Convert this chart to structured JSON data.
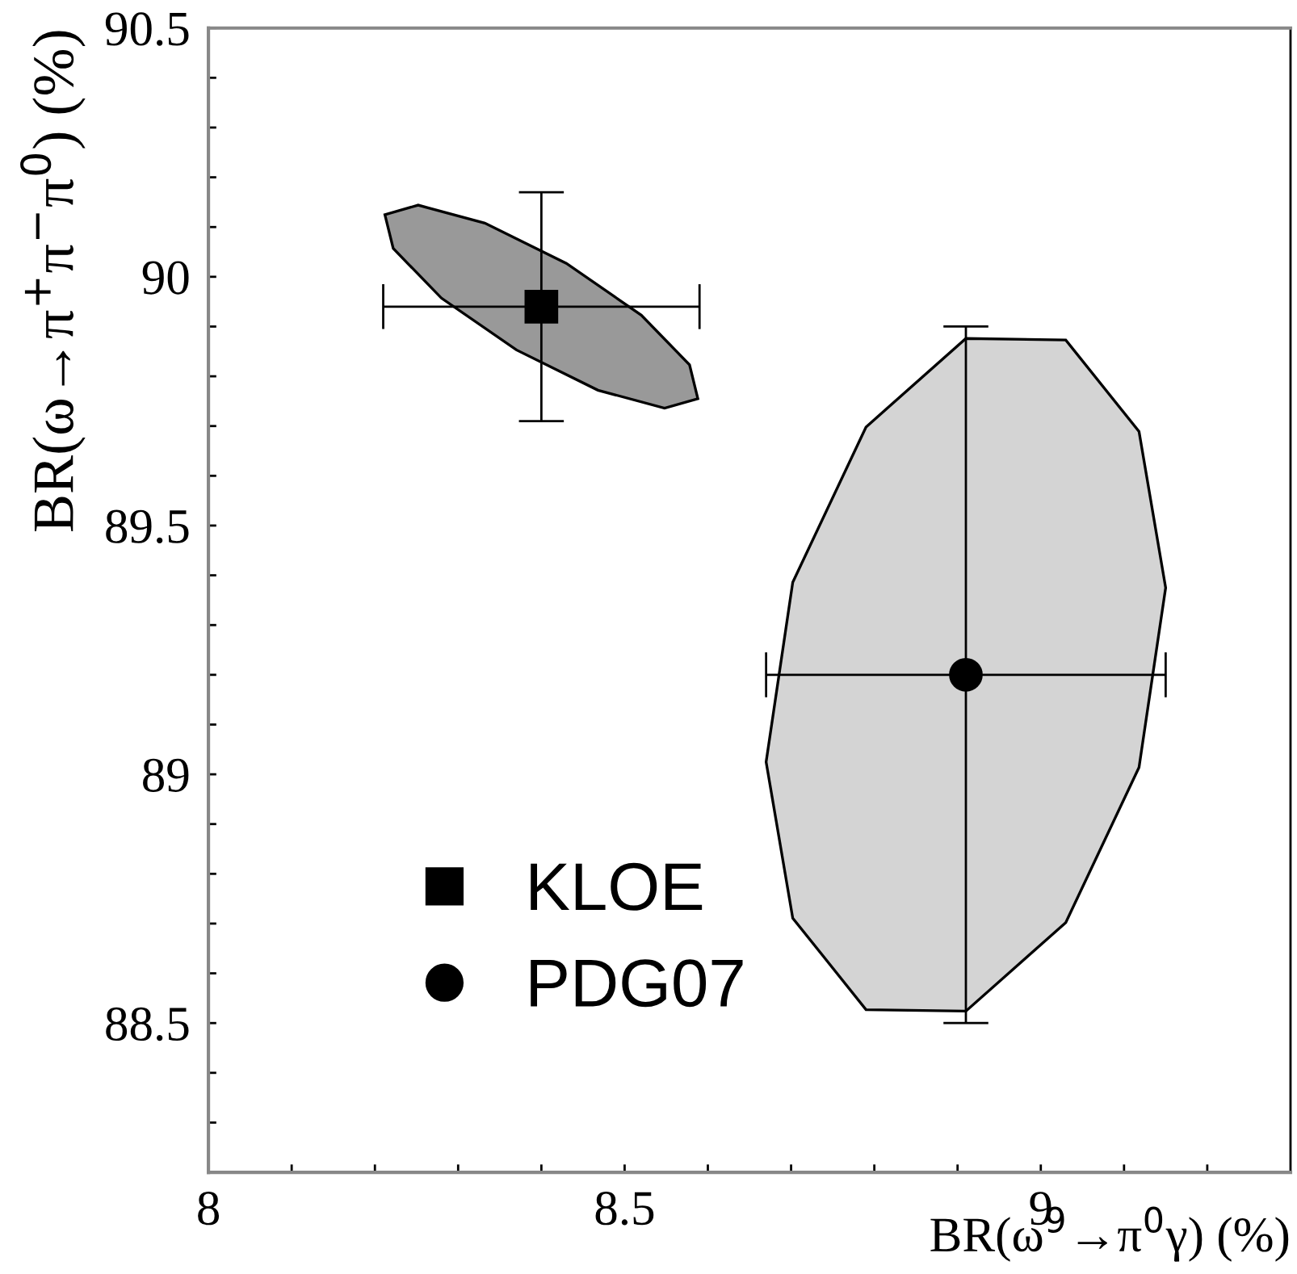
{
  "chart_data": {
    "type": "scatter",
    "xlabel": "BR(ω$^{9}$→π$^{0}$γ) (%)",
    "ylabel": "BR(ω→π$^{+}$π$^{−}$π$^{0}$) (%)",
    "xlim": [
      8,
      9.3
    ],
    "ylim": [
      88.2,
      90.5
    ],
    "xticks": [
      8,
      {
        "value": 8.1,
        "label": null
      },
      {
        "value": 8.2,
        "label": null
      },
      {
        "value": 8.3,
        "label": null
      },
      {
        "value": 8.4,
        "label": null
      },
      8.5,
      {
        "value": 8.6,
        "label": null
      },
      {
        "value": 8.7,
        "label": null
      },
      {
        "value": 8.8,
        "label": null
      },
      {
        "value": 8.9,
        "label": null
      },
      9,
      {
        "value": 9.1,
        "label": null
      },
      {
        "value": 9.2,
        "label": null
      }
    ],
    "yticks": [
      {
        "value": 88.3,
        "label": null
      },
      {
        "value": 88.4,
        "label": null
      },
      88.5,
      {
        "value": 88.6,
        "label": null
      },
      {
        "value": 88.7,
        "label": null
      },
      {
        "value": 88.8,
        "label": null
      },
      {
        "value": 88.9,
        "label": null
      },
      89,
      {
        "value": 89.1,
        "label": null
      },
      {
        "value": 89.2,
        "label": null
      },
      {
        "value": 89.3,
        "label": null
      },
      {
        "value": 89.4,
        "label": null
      },
      89.5,
      {
        "value": 89.6,
        "label": null
      },
      {
        "value": 89.7,
        "label": null
      },
      {
        "value": 89.8,
        "label": null
      },
      {
        "value": 89.9,
        "label": null
      },
      90,
      {
        "value": 90.1,
        "label": null
      },
      {
        "value": 90.2,
        "label": null
      },
      {
        "value": 90.3,
        "label": null
      },
      {
        "value": 90.4,
        "label": null
      },
      90.5
    ],
    "grid": false,
    "legend": "bottom left",
    "series": [
      {
        "type": "area",
        "color": "#999999",
        "x": [
          8.588,
          8.578,
          8.52,
          8.43,
          8.332,
          8.252,
          8.212,
          8.222,
          8.28,
          8.37,
          8.468,
          8.548
        ],
        "values": [
          89.755,
          89.823,
          89.923,
          90.027,
          90.108,
          90.144,
          90.125,
          90.057,
          89.957,
          89.853,
          89.772,
          89.736
        ]
      },
      {
        "type": "area",
        "color": "#d4d4d4",
        "x": [
          9.15,
          9.118,
          9.03,
          8.91,
          8.79,
          8.702,
          8.67,
          8.702,
          8.79,
          8.91,
          9.03,
          9.118
        ],
        "values": [
          89.375,
          89.689,
          89.873,
          89.876,
          89.698,
          89.386,
          89.025,
          88.711,
          88.527,
          88.524,
          88.702,
          89.014
        ]
      },
      {
        "name": "KLOE",
        "color": "#000000",
        "marker": "square",
        "x": [
          8.4
        ],
        "values": [
          89.94
        ],
        "errors": [
          0.23
        ],
        "xerrors": [
          0.19
        ]
      },
      {
        "name": "PDG07",
        "color": "#000000",
        "marker": "circle",
        "x": [
          8.91
        ],
        "values": [
          89.2
        ],
        "errors": [
          0.7
        ],
        "xerrors": [
          0.24
        ]
      }
    ]
  }
}
